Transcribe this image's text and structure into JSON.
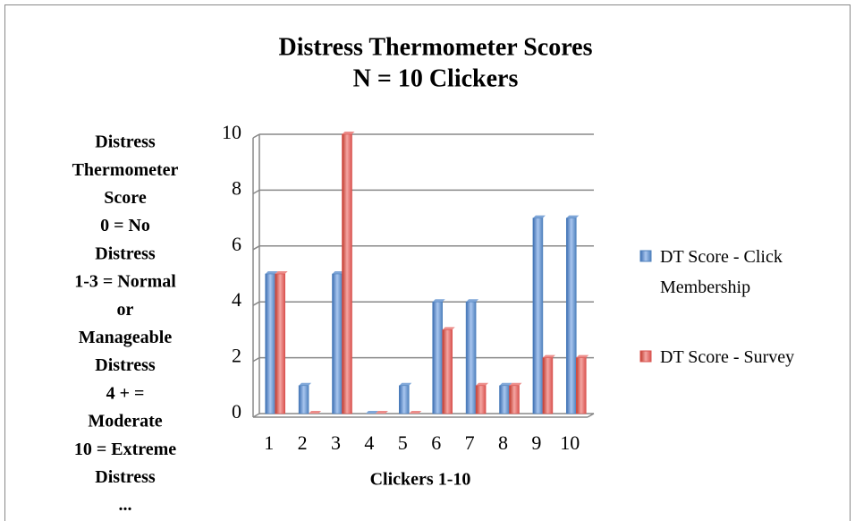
{
  "chart_data": {
    "type": "bar",
    "title": [
      "Distress Thermometer Scores",
      "N = 10 Clickers"
    ],
    "y_label": [
      "Distress",
      "Thermometer",
      "Score",
      "0 = No",
      "Distress",
      "1-3 = Normal",
      "or",
      "Manageable",
      "Distress",
      "4 + =",
      "Moderate",
      "10 = Extreme",
      "Distress",
      "..."
    ],
    "x_label": "Clickers 1-10",
    "categories": [
      "1",
      "2",
      "3",
      "4",
      "5",
      "6",
      "7",
      "8",
      "9",
      "10"
    ],
    "series": [
      {
        "name": "DT Score - Click Membership",
        "color": "#4f81bd",
        "values": [
          5,
          1,
          5,
          0,
          1,
          4,
          4,
          1,
          7,
          7
        ]
      },
      {
        "name": "DT Score - Survey",
        "color": "#d9534f",
        "values": [
          5,
          0,
          10,
          0,
          0,
          3,
          1,
          1,
          2,
          2
        ]
      }
    ],
    "ylim": [
      0,
      10
    ],
    "yticks": [
      0,
      2,
      4,
      6,
      8,
      10
    ],
    "grid": true,
    "legend": "right"
  }
}
